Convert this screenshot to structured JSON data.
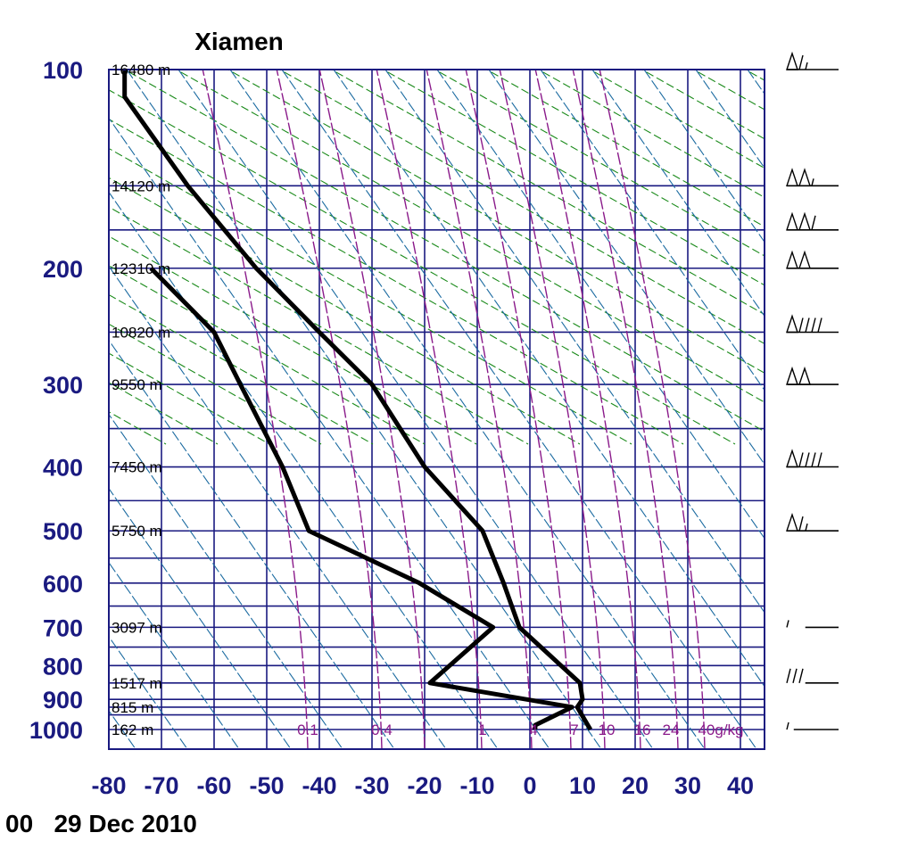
{
  "chart_data": {
    "type": "line",
    "title": "Xiamen",
    "date_label": "00   29 Dec 2010",
    "pressure_ticks": [
      100,
      200,
      300,
      400,
      500,
      600,
      700,
      800,
      900,
      1000
    ],
    "temp_ticks": [
      -80,
      -70,
      -60,
      -50,
      -40,
      -30,
      -20,
      -10,
      0,
      10,
      20,
      30,
      40
    ],
    "height_labels": [
      {
        "p": 100,
        "text": "16480 m"
      },
      {
        "p": 150,
        "text": "14120 m"
      },
      {
        "p": 200,
        "text": "12310 m"
      },
      {
        "p": 250,
        "text": "10820 m"
      },
      {
        "p": 300,
        "text": "9550 m"
      },
      {
        "p": 400,
        "text": "7450 m"
      },
      {
        "p": 500,
        "text": "5750 m"
      },
      {
        "p": 700,
        "text": "3097 m"
      },
      {
        "p": 850,
        "text": "1517 m"
      },
      {
        "p": 925,
        "text": "815 m"
      },
      {
        "p": 1000,
        "text": "162 m"
      }
    ],
    "mixing_ratio_labels": [
      "0.1",
      "0.4",
      "1",
      "4",
      "7",
      "10",
      "16",
      "24",
      "40g/kg"
    ],
    "series": [
      {
        "color": "#000000",
        "points": [
          {
            "p": 1000,
            "t": 11.5
          },
          {
            "p": 985,
            "t": 11
          },
          {
            "p": 925,
            "t": 9
          },
          {
            "p": 900,
            "t": 10
          },
          {
            "p": 850,
            "t": 9.5
          },
          {
            "p": 700,
            "t": -2
          },
          {
            "p": 600,
            "t": -5
          },
          {
            "p": 500,
            "t": -9
          },
          {
            "p": 400,
            "t": -20
          },
          {
            "p": 300,
            "t": -30
          },
          {
            "p": 250,
            "t": -40
          },
          {
            "p": 200,
            "t": -52
          },
          {
            "p": 150,
            "t": -65
          },
          {
            "p": 110,
            "t": -77
          },
          {
            "p": 100,
            "t": -77
          }
        ]
      },
      {
        "color": "#000000",
        "points": [
          {
            "p": 1000,
            "t": 1
          },
          {
            "p": 985,
            "t": 1
          },
          {
            "p": 925,
            "t": 8
          },
          {
            "p": 850,
            "t": -19
          },
          {
            "p": 700,
            "t": -7
          },
          {
            "p": 600,
            "t": -21
          },
          {
            "p": 500,
            "t": -42
          },
          {
            "p": 400,
            "t": -47
          },
          {
            "p": 300,
            "t": -55
          },
          {
            "p": 250,
            "t": -60
          },
          {
            "p": 200,
            "t": -72
          }
        ]
      }
    ],
    "wind_barbs": [
      {
        "p": 100,
        "dir": 270,
        "speed": 65
      },
      {
        "p": 150,
        "dir": 270,
        "speed": 105
      },
      {
        "p": 175,
        "dir": 270,
        "speed": 110
      },
      {
        "p": 200,
        "dir": 270,
        "speed": 100
      },
      {
        "p": 250,
        "dir": 270,
        "speed": 90
      },
      {
        "p": 300,
        "dir": 260,
        "speed": 100
      },
      {
        "p": 400,
        "dir": 270,
        "speed": 90
      },
      {
        "p": 500,
        "dir": 270,
        "speed": 65
      },
      {
        "p": 700,
        "dir": 320,
        "speed": 5
      },
      {
        "p": 850,
        "dir": 220,
        "speed": 30
      },
      {
        "p": 1000,
        "dir": 240,
        "speed": 5
      }
    ],
    "colors": {
      "grid": "#1a1a80",
      "dry_adiabat": "#1a8a1a",
      "moist_adiabat": "#1a6aa0",
      "mixing_ratio": "#8a1a8a",
      "profile": "#000000"
    }
  }
}
